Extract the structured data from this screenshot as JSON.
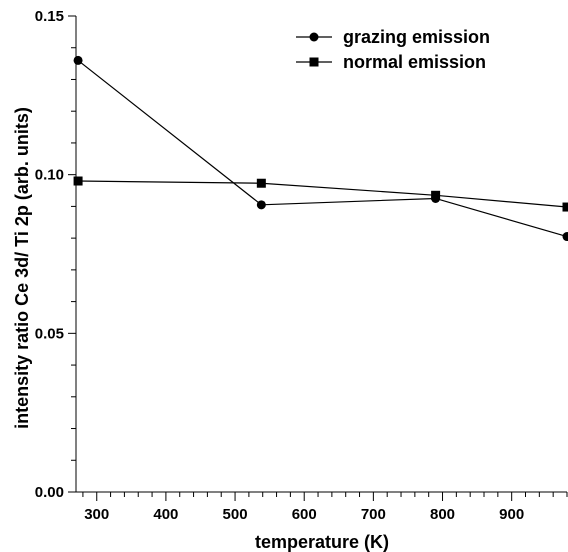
{
  "chart_data": {
    "type": "line",
    "title": "",
    "xlabel": "temperature (K)",
    "ylabel": "intensity ratio Ce 3d/ Ti 2p (arb. units)",
    "xlim": [
      270,
      980
    ],
    "ylim": [
      0.0,
      0.15
    ],
    "x_ticks": [
      300,
      400,
      500,
      600,
      700,
      800,
      900
    ],
    "x_tick_labels": [
      "300",
      "400",
      "500",
      "600",
      "700",
      "800",
      "900"
    ],
    "y_ticks": [
      0.0,
      0.05,
      0.1,
      0.15
    ],
    "y_tick_labels": [
      "0.00",
      "0.05",
      "0.10",
      "0.15"
    ],
    "grid": false,
    "legend_position": "top-right",
    "series": [
      {
        "name": "grazing emission",
        "marker": "circle",
        "color": "#000000",
        "x": [
          273,
          538,
          790,
          980
        ],
        "y": [
          0.136,
          0.0905,
          0.0925,
          0.0805
        ]
      },
      {
        "name": "normal emission",
        "marker": "square",
        "color": "#000000",
        "x": [
          273,
          538,
          790,
          980
        ],
        "y": [
          0.098,
          0.0973,
          0.0935,
          0.0898
        ]
      }
    ]
  }
}
